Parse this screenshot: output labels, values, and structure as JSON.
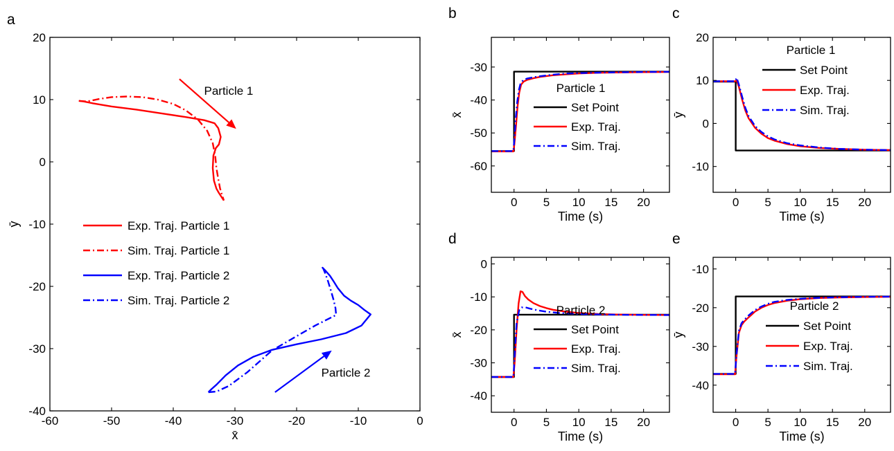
{
  "figure": {
    "panels": [
      {
        "id": "a",
        "label": "a"
      },
      {
        "id": "b",
        "label": "b"
      },
      {
        "id": "c",
        "label": "c"
      },
      {
        "id": "d",
        "label": "d"
      },
      {
        "id": "e",
        "label": "e"
      }
    ]
  },
  "colors": {
    "exp": "#ff0000",
    "sim_p1": "#ff0000",
    "sim_p2": "#0000ff",
    "exp_p2": "#0000ff",
    "setpoint": "#000000",
    "sim": "#0000ff"
  },
  "chart_data": [
    {
      "panel": "a",
      "type": "line",
      "xlabel": "x̄",
      "ylabel": "ȳ",
      "xlim": [
        -60,
        0
      ],
      "ylim": [
        -40,
        20
      ],
      "xticks": [
        -60,
        -50,
        -40,
        -30,
        -20,
        -10,
        0
      ],
      "yticks": [
        -40,
        -30,
        -20,
        -10,
        0,
        10,
        20
      ],
      "grid": false,
      "legend_position": "center-left",
      "annotations": [
        {
          "text": "Particle 1",
          "at": [
            -35,
            10.8
          ]
        },
        {
          "text": "Particle 2",
          "at": [
            -16,
            -34.5
          ]
        }
      ],
      "arrows": [
        {
          "from": [
            -39,
            13.3
          ],
          "to": [
            -29.8,
            5.3
          ],
          "color": "#ff0000"
        },
        {
          "from": [
            -23.5,
            -37
          ],
          "to": [
            -14.3,
            -30.3
          ],
          "color": "#0000ff"
        }
      ],
      "series": [
        {
          "name": "Exp. Traj. Particle 1",
          "style": "solid",
          "color": "#ff0000",
          "x": [
            -55.3,
            -54.5,
            -53,
            -50,
            -46,
            -42,
            -38,
            -35,
            -33.3,
            -32.7,
            -32.3,
            -32.6,
            -33.1,
            -33.5,
            -33.6,
            -33.4,
            -33.0,
            -32.6,
            -32.2,
            -31.8
          ],
          "y": [
            9.8,
            9.7,
            9.4,
            8.9,
            8.4,
            7.8,
            7.2,
            6.7,
            6.2,
            5.4,
            4.0,
            2.8,
            2.2,
            1.0,
            -1.0,
            -3.0,
            -4.3,
            -5.0,
            -5.6,
            -6.2
          ]
        },
        {
          "name": "Sim. Traj. Particle 1",
          "style": "dashdot",
          "color": "#ff0000",
          "x": [
            -55.3,
            -54,
            -52,
            -50,
            -47.5,
            -45,
            -42.5,
            -40,
            -38,
            -36,
            -34.5,
            -33.6,
            -33.2,
            -33.0,
            -32.7,
            -32.4,
            -32.1,
            -31.8
          ],
          "y": [
            9.8,
            9.7,
            10.1,
            10.4,
            10.5,
            10.4,
            10.0,
            9.3,
            8.3,
            6.8,
            5.0,
            3.0,
            1.0,
            -1.0,
            -2.8,
            -4.3,
            -5.3,
            -6.2
          ]
        },
        {
          "name": "Exp. Traj. Particle 2",
          "style": "solid",
          "color": "#0000ff",
          "x": [
            -34.3,
            -33.8,
            -33,
            -31.5,
            -29.5,
            -27,
            -24,
            -20,
            -16,
            -12,
            -9.5,
            -8.0,
            -9.0,
            -10,
            -11.2,
            -12.3,
            -13.3,
            -14.0,
            -14.6,
            -15.3,
            -15.8,
            -15.7
          ],
          "y": [
            -37,
            -36.5,
            -35.8,
            -34.3,
            -32.7,
            -31.3,
            -30.2,
            -29.3,
            -28.5,
            -27.5,
            -26.3,
            -24.5,
            -23.8,
            -23.0,
            -22.3,
            -21.5,
            -20.3,
            -19.2,
            -18.3,
            -17.5,
            -17.0,
            -17.1
          ]
        },
        {
          "name": "Sim. Traj. Particle 2",
          "style": "dashdot",
          "color": "#0000ff",
          "x": [
            -34.3,
            -33,
            -31,
            -28,
            -24,
            -20,
            -17,
            -15,
            -13.6,
            -13.7,
            -14.0,
            -14.4,
            -14.9,
            -15.4,
            -15.7
          ],
          "y": [
            -37,
            -36.9,
            -36.0,
            -33.8,
            -30.3,
            -28.0,
            -26.3,
            -25.3,
            -24.6,
            -23.5,
            -22.2,
            -20.8,
            -19.2,
            -17.8,
            -17.1
          ]
        }
      ]
    },
    {
      "panel": "b",
      "type": "line",
      "xlabel": "Time (s)",
      "ylabel": "x̄",
      "xlim": [
        -3.5,
        24
      ],
      "ylim": [
        -68,
        -21
      ],
      "xticks": [
        0,
        5,
        10,
        15,
        20
      ],
      "yticks": [
        -60,
        -50,
        -40,
        -30
      ],
      "grid": false,
      "legend_position": "center",
      "legend_title": "Particle 1",
      "series": [
        {
          "name": "Set Point",
          "style": "solid",
          "color": "#000000",
          "x": [
            -3.5,
            0,
            0,
            24
          ],
          "y": [
            -55.5,
            -55.5,
            -31.4,
            -31.4
          ]
        },
        {
          "name": "Exp. Traj.",
          "style": "solid",
          "color": "#ff0000",
          "x": [
            -3.5,
            -0.1,
            0.05,
            0.3,
            0.55,
            0.8,
            1.1,
            1.5,
            2,
            3,
            4,
            6,
            8,
            10,
            13,
            16,
            20,
            24
          ],
          "y": [
            -55.6,
            -55.6,
            -53.5,
            -48,
            -42,
            -37.8,
            -35.3,
            -34.4,
            -33.9,
            -33.4,
            -33.0,
            -32.5,
            -32.2,
            -31.95,
            -31.75,
            -31.65,
            -31.55,
            -31.5
          ]
        },
        {
          "name": "Sim. Traj.",
          "style": "dashdot",
          "color": "#0000ff",
          "x": [
            -3.5,
            -0.1,
            0.05,
            0.25,
            0.5,
            0.75,
            1.0,
            1.4,
            2,
            3,
            4,
            6,
            8,
            10,
            13,
            16,
            20,
            24
          ],
          "y": [
            -55.5,
            -55.5,
            -52,
            -46,
            -40.5,
            -37,
            -35,
            -34.0,
            -33.5,
            -33.1,
            -32.8,
            -32.3,
            -32.0,
            -31.85,
            -31.7,
            -31.6,
            -31.5,
            -31.45
          ]
        }
      ]
    },
    {
      "panel": "c",
      "type": "line",
      "xlabel": "Time (s)",
      "ylabel": "ȳ",
      "xlim": [
        -3.5,
        24
      ],
      "ylim": [
        -16,
        20
      ],
      "xticks": [
        0,
        5,
        10,
        15,
        20
      ],
      "yticks": [
        -10,
        0,
        10,
        20
      ],
      "grid": false,
      "legend_position": "top-right",
      "legend_title": "Particle 1",
      "series": [
        {
          "name": "Set Point",
          "style": "solid",
          "color": "#000000",
          "x": [
            -3.5,
            0,
            0,
            24
          ],
          "y": [
            9.7,
            9.7,
            -6.3,
            -6.3
          ]
        },
        {
          "name": "Exp. Traj.",
          "style": "solid",
          "color": "#ff0000",
          "x": [
            -3.5,
            -0.1,
            0.15,
            0.5,
            1,
            1.5,
            2,
            3,
            4,
            5,
            6,
            8,
            10,
            13,
            16,
            20,
            24
          ],
          "y": [
            9.8,
            9.8,
            10.0,
            8.5,
            5.5,
            3.0,
            1.2,
            -1.0,
            -2.4,
            -3.4,
            -4.0,
            -4.8,
            -5.3,
            -5.7,
            -5.9,
            -6.1,
            -6.2
          ]
        },
        {
          "name": "Sim. Traj.",
          "style": "dashdot",
          "color": "#0000ff",
          "x": [
            -3.5,
            -0.1,
            0.15,
            0.5,
            1,
            1.5,
            2,
            3,
            4,
            5,
            6,
            8,
            10,
            13,
            16,
            20,
            24
          ],
          "y": [
            9.8,
            9.8,
            10.6,
            9.0,
            6.2,
            3.6,
            1.7,
            -0.6,
            -2.0,
            -3.0,
            -3.7,
            -4.6,
            -5.1,
            -5.6,
            -5.9,
            -6.1,
            -6.2
          ]
        }
      ]
    },
    {
      "panel": "d",
      "type": "line",
      "xlabel": "Time (s)",
      "ylabel": "x̄",
      "xlim": [
        -3.5,
        24
      ],
      "ylim": [
        -45,
        2
      ],
      "xticks": [
        0,
        5,
        10,
        15,
        20
      ],
      "yticks": [
        -40,
        -30,
        -20,
        -10,
        0
      ],
      "grid": false,
      "legend_position": "bottom-center",
      "legend_title": "Particle 2",
      "series": [
        {
          "name": "Set Point",
          "style": "solid",
          "color": "#000000",
          "x": [
            -3.5,
            0,
            0,
            24
          ],
          "y": [
            -34.3,
            -34.3,
            -15.4,
            -15.4
          ]
        },
        {
          "name": "Exp. Traj.",
          "style": "solid",
          "color": "#ff0000",
          "x": [
            -3.5,
            -0.1,
            0.1,
            0.4,
            0.7,
            1.0,
            1.3,
            1.7,
            2.2,
            3,
            4,
            5,
            6,
            8,
            10,
            13,
            16,
            20,
            24
          ],
          "y": [
            -34.3,
            -34.3,
            -30,
            -20,
            -12,
            -8.3,
            -8.5,
            -9.8,
            -10.8,
            -11.9,
            -12.8,
            -13.4,
            -13.9,
            -14.5,
            -14.9,
            -15.2,
            -15.35,
            -15.45,
            -15.5
          ]
        },
        {
          "name": "Sim. Traj.",
          "style": "dashdot",
          "color": "#0000ff",
          "x": [
            -3.5,
            -0.1,
            0.1,
            0.4,
            0.8,
            1.2,
            1.8,
            2.5,
            3.5,
            5,
            7,
            10,
            14,
            18,
            24
          ],
          "y": [
            -34.3,
            -34.3,
            -28,
            -18,
            -14,
            -13.2,
            -13.2,
            -13.6,
            -14.0,
            -14.5,
            -14.9,
            -15.2,
            -15.35,
            -15.45,
            -15.5
          ]
        }
      ]
    },
    {
      "panel": "e",
      "type": "line",
      "xlabel": "Time (s)",
      "ylabel": "ȳ",
      "xlim": [
        -3.5,
        24
      ],
      "ylim": [
        -47,
        -7
      ],
      "xticks": [
        0,
        5,
        10,
        15,
        20
      ],
      "yticks": [
        -40,
        -30,
        -20,
        -10
      ],
      "grid": false,
      "legend_position": "bottom-center",
      "legend_title": "Particle 2",
      "series": [
        {
          "name": "Set Point",
          "style": "solid",
          "color": "#000000",
          "x": [
            -3.5,
            0,
            0,
            24
          ],
          "y": [
            -37.1,
            -37.1,
            -17.1,
            -17.1
          ]
        },
        {
          "name": "Exp. Traj.",
          "style": "solid",
          "color": "#ff0000",
          "x": [
            -3.5,
            -0.1,
            0.1,
            0.5,
            0.9,
            1.3,
            2,
            3,
            4,
            5,
            6,
            8,
            10,
            13,
            16,
            20,
            24
          ],
          "y": [
            -37.2,
            -37.2,
            -33,
            -26.5,
            -24.5,
            -23.6,
            -22.5,
            -21.0,
            -20.0,
            -19.3,
            -18.8,
            -18.2,
            -17.8,
            -17.5,
            -17.35,
            -17.25,
            -17.2
          ]
        },
        {
          "name": "Sim. Traj.",
          "style": "dashdot",
          "color": "#0000ff",
          "x": [
            -3.5,
            -0.1,
            0.1,
            0.5,
            0.9,
            1.3,
            2,
            3,
            4,
            5,
            6,
            8,
            10,
            13,
            16,
            20,
            24
          ],
          "y": [
            -37.1,
            -37.1,
            -32.5,
            -26.0,
            -24.0,
            -23.2,
            -22.0,
            -20.6,
            -19.7,
            -19.0,
            -18.5,
            -18.0,
            -17.7,
            -17.45,
            -17.3,
            -17.2,
            -17.15
          ]
        }
      ]
    }
  ]
}
